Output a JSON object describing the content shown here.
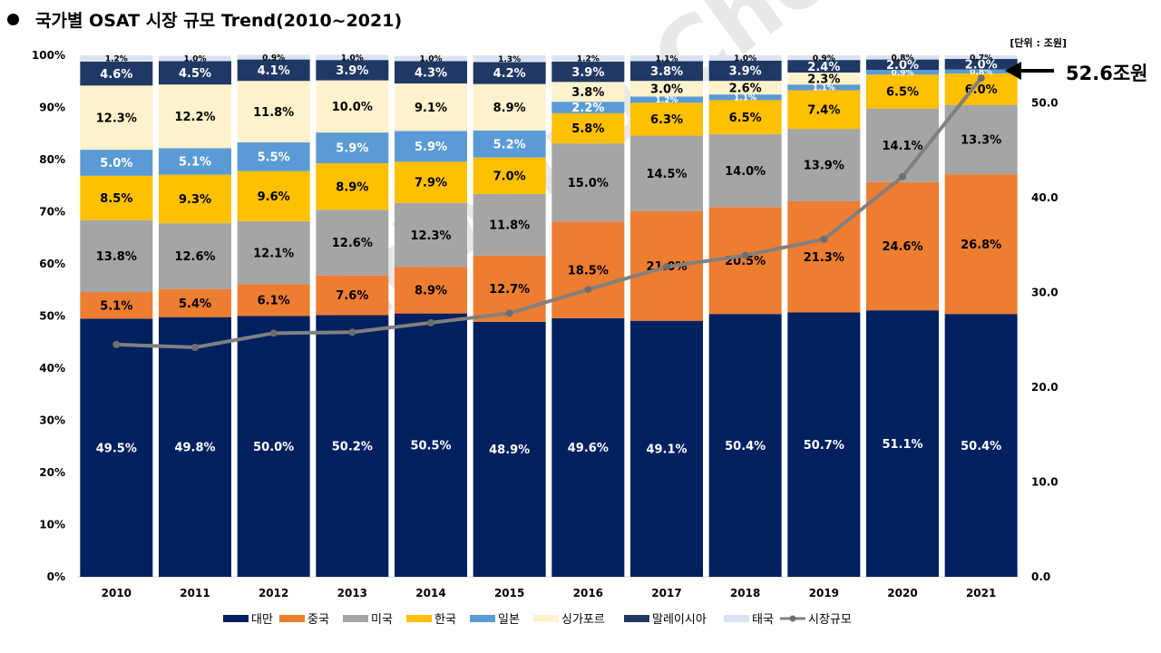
{
  "title": "국가별 OSAT 시장 규모 Trend(2010~2021)",
  "watermark": "Edward Choi",
  "chart_data": {
    "type": "bar",
    "stacked": true,
    "title": "국가별 OSAT 시장 규모 Trend(2010~2021)",
    "unit_note": "[단위 : 조원]",
    "categories": [
      "2010",
      "2011",
      "2012",
      "2013",
      "2014",
      "2015",
      "2016",
      "2017",
      "2018",
      "2019",
      "2020",
      "2021"
    ],
    "ylim_left": [
      0,
      100
    ],
    "ylim_right": [
      0,
      55
    ],
    "left_ticks": [
      "0%",
      "10%",
      "20%",
      "30%",
      "40%",
      "50%",
      "60%",
      "70%",
      "80%",
      "90%",
      "100%"
    ],
    "right_ticks": [
      "0.0",
      "10.0",
      "20.0",
      "30.0",
      "40.0",
      "50.0"
    ],
    "series": [
      {
        "name": "대만",
        "color": "#002060",
        "label_color": "#ffffff",
        "values": [
          49.5,
          49.8,
          50.0,
          50.2,
          50.5,
          48.9,
          49.6,
          49.1,
          50.4,
          50.7,
          51.1,
          50.4
        ],
        "labels": [
          "49.5%",
          "49.8%",
          "50.0%",
          "50.2%",
          "50.5%",
          "48.9%",
          "49.6%",
          "49.1%",
          "50.4%",
          "50.7%",
          "51.1%",
          "50.4%"
        ]
      },
      {
        "name": "중국",
        "color": "#ED7D31",
        "label_color": "#000000",
        "values": [
          5.1,
          5.4,
          6.1,
          7.6,
          8.9,
          12.7,
          18.5,
          21.0,
          20.5,
          21.3,
          24.6,
          26.8
        ],
        "labels": [
          "5.1%",
          "5.4%",
          "6.1%",
          "7.6%",
          "8.9%",
          "12.7%",
          "18.5%",
          "21.0%",
          "20.5%",
          "21.3%",
          "24.6%",
          "26.8%"
        ]
      },
      {
        "name": "미국",
        "color": "#A5A5A5",
        "label_color": "#000000",
        "values": [
          13.8,
          12.6,
          12.1,
          12.6,
          12.3,
          11.8,
          15.0,
          14.5,
          14.0,
          13.9,
          14.1,
          13.3
        ],
        "labels": [
          "13.8%",
          "12.6%",
          "12.1%",
          "12.6%",
          "12.3%",
          "11.8%",
          "15.0%",
          "14.5%",
          "14.0%",
          "13.9%",
          "14.1%",
          "13.3%"
        ]
      },
      {
        "name": "한국",
        "color": "#FFC000",
        "label_color": "#000000",
        "values": [
          8.5,
          9.3,
          9.6,
          8.9,
          7.9,
          7.0,
          5.8,
          6.3,
          6.5,
          7.4,
          6.5,
          6.0
        ],
        "labels": [
          "8.5%",
          "9.3%",
          "9.6%",
          "8.9%",
          "7.9%",
          "7.0%",
          "5.8%",
          "6.3%",
          "6.5%",
          "7.4%",
          "6.5%",
          "6.0%"
        ]
      },
      {
        "name": "일본",
        "color": "#5B9BD5",
        "label_color": "#ffffff",
        "values": [
          5.0,
          5.1,
          5.5,
          5.9,
          5.9,
          5.2,
          2.2,
          1.2,
          1.1,
          1.1,
          0.9,
          0.8
        ],
        "labels": [
          "5.0%",
          "5.1%",
          "5.5%",
          "5.9%",
          "5.9%",
          "5.2%",
          "2.2%",
          "1.2%",
          "1.1%",
          "1.1%",
          "0.9%",
          "0.8%"
        ]
      },
      {
        "name": "싱가포르",
        "color": "#FFF2CC",
        "label_color": "#000000",
        "values": [
          12.3,
          12.2,
          11.8,
          10.0,
          9.1,
          8.9,
          3.8,
          3.0,
          2.6,
          2.3,
          0.0,
          0.0
        ],
        "labels": [
          "12.3%",
          "12.2%",
          "11.8%",
          "10.0%",
          "9.1%",
          "8.9%",
          "3.8%",
          "3.0%",
          "2.6%",
          "2.3%",
          "",
          ""
        ]
      },
      {
        "name": "말레이시아",
        "color": "#203864",
        "label_color": "#ffffff",
        "values": [
          4.6,
          4.5,
          4.1,
          3.9,
          4.3,
          4.2,
          3.9,
          3.8,
          3.9,
          2.4,
          2.0,
          2.0
        ],
        "labels": [
          "4.6%",
          "4.5%",
          "4.1%",
          "3.9%",
          "4.3%",
          "4.2%",
          "3.9%",
          "3.8%",
          "3.9%",
          "2.4%",
          "2.0%",
          "2.0%"
        ]
      },
      {
        "name": "태국",
        "color": "#DAE3F3",
        "label_color": "#000000",
        "values": [
          1.2,
          1.0,
          0.9,
          1.0,
          1.0,
          1.3,
          1.2,
          1.1,
          1.0,
          0.9,
          0.8,
          0.7
        ],
        "labels": [
          "1.2%",
          "1.0%",
          "0.9%",
          "1.0%",
          "1.0%",
          "1.3%",
          "1.2%",
          "1.1%",
          "1.0%",
          "0.9%",
          "0.8%",
          "0.7%"
        ]
      }
    ],
    "line_series": {
      "name": "시장규모",
      "color": "#808080",
      "axis": "right",
      "values": [
        24.5,
        24.2,
        25.7,
        25.8,
        26.8,
        27.8,
        30.3,
        32.7,
        33.9,
        35.6,
        42.2,
        52.6
      ]
    },
    "callout": {
      "text": "52.6조원",
      "target_index": 11
    },
    "legend_position": "bottom"
  }
}
